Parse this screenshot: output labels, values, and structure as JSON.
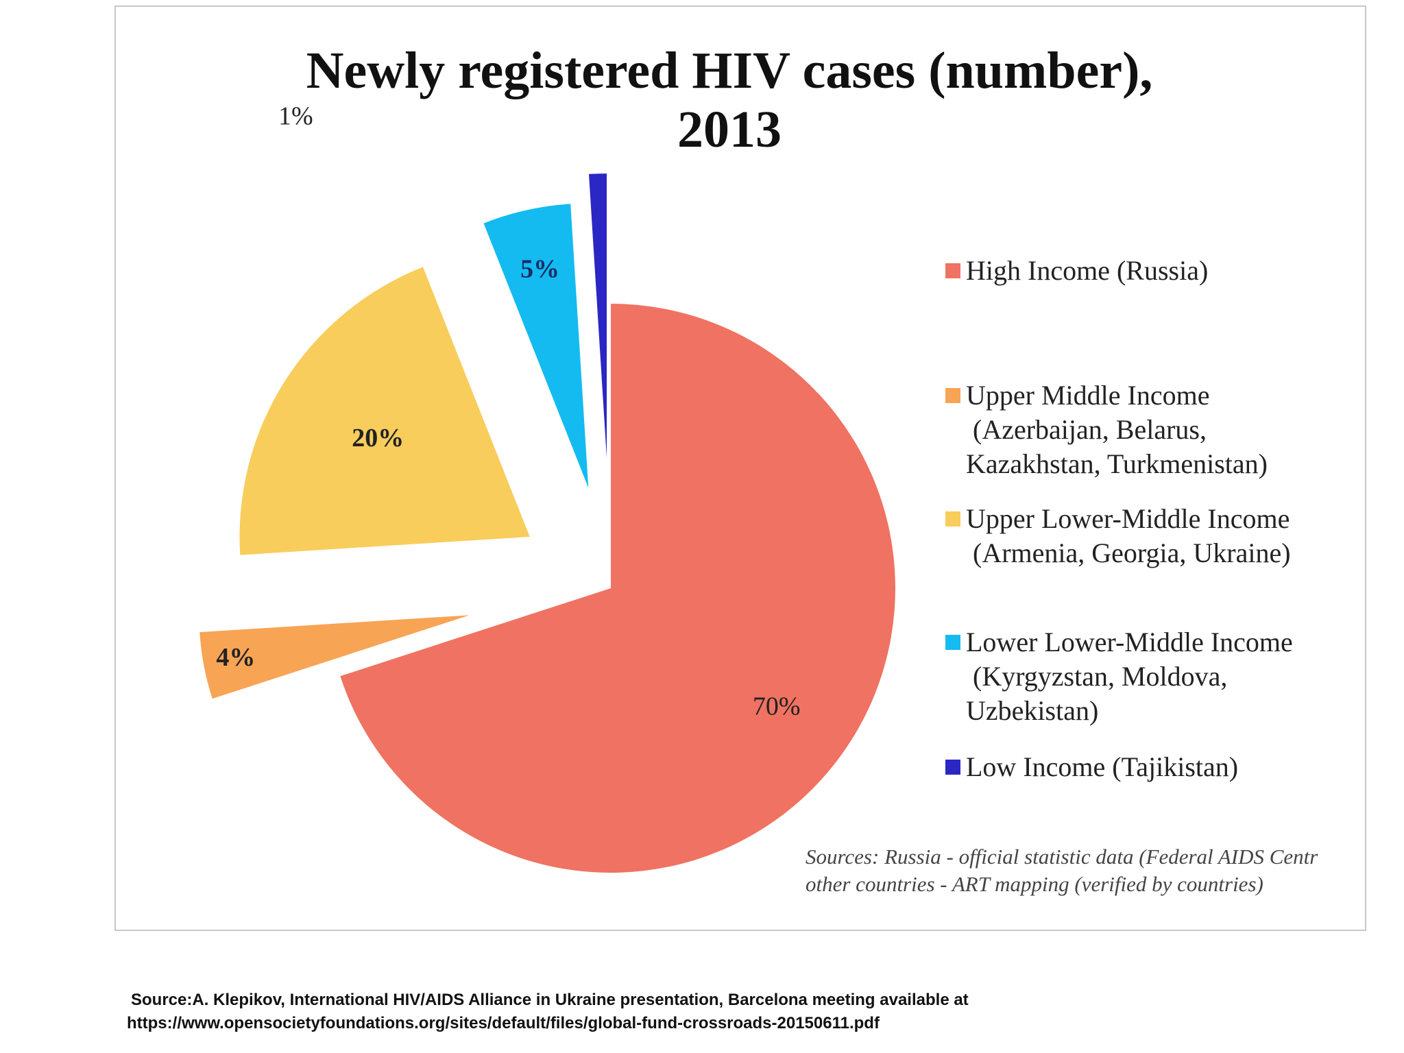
{
  "chart_data": {
    "type": "pie",
    "title": "Newly registered HIV cases (number), 2013",
    "title_lines": [
      "Newly registered HIV cases (number),",
      "2013"
    ],
    "slices": [
      {
        "label": "High Income (Russia)",
        "value": 70,
        "value_label": "70%",
        "color": "#f07262"
      },
      {
        "label": "Upper Middle Income (Azerbaijan, Belarus, Kazakhstan, Turkmenistan)",
        "value": 4,
        "value_label": "4%",
        "color": "#f8a455"
      },
      {
        "label": "Upper Lower-Middle Income (Armenia, Georgia, Ukraine)",
        "value": 20,
        "value_label": "20%",
        "color": "#f8cd5c"
      },
      {
        "label": "Lower Lower-Middle Income (Kyrgyzstan, Moldova, Uzbekistan)",
        "value": 5,
        "value_label": "5%",
        "color": "#13bbf0"
      },
      {
        "label": "Low Income (Tajikistan)",
        "value": 1,
        "value_label": "1%",
        "color": "#2a27c4"
      }
    ],
    "legend_placement": "right",
    "exploded": true
  },
  "legend": [
    {
      "lines": [
        "High Income (Russia)"
      ],
      "color": "#f07262"
    },
    {
      "lines": [
        "Upper Middle Income",
        "(Azerbaijan, Belarus,",
        "Kazakhstan, Turkmenistan)"
      ],
      "color": "#f8a455"
    },
    {
      "lines": [
        "Upper Lower-Middle Income",
        "(Armenia, Georgia, Ukraine)"
      ],
      "color": "#f8cd5c"
    },
    {
      "lines": [
        "Lower Lower-Middle Income",
        "(Kyrgyzstan, Moldova,",
        "Uzbekistan)"
      ],
      "color": "#13bbf0"
    },
    {
      "lines": [
        "Low Income  (Tajikistan)"
      ],
      "color": "#2a27c4"
    }
  ],
  "sources_note": {
    "line1": "Sources: Russia - official statistic data (Federal AIDS Centr",
    "line2": "other countries - ART mapping (verified by countries)"
  },
  "footer": {
    "line1": "Source:A. Klepikov, International HIV/AIDS Alliance in Ukraine presentation, Barcelona meeting available at",
    "line2": "https://www.opensocietyfoundations.org/sites/default/files/global-fund-crossroads-20150611.pdf"
  }
}
